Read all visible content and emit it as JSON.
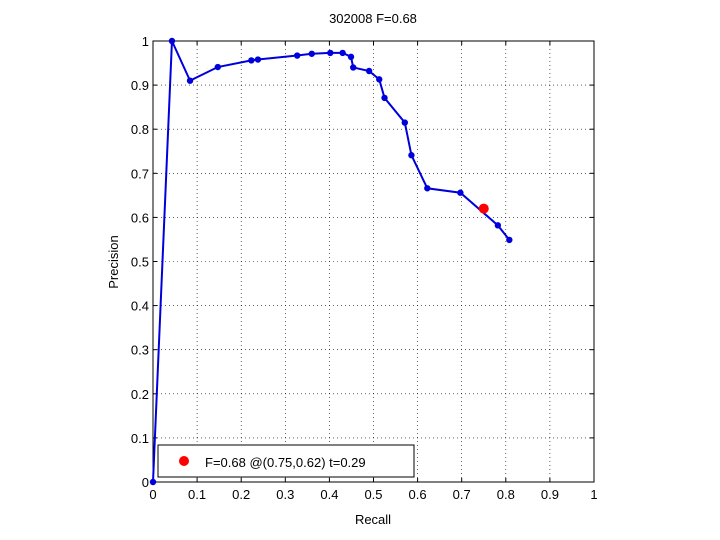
{
  "chart_data": {
    "type": "line",
    "title": "302008 F=0.68",
    "xlabel": "Recall",
    "ylabel": "Precision",
    "xlim": [
      0,
      1
    ],
    "ylim": [
      0,
      1
    ],
    "grid": true,
    "x_ticks": [
      "0",
      "0.1",
      "0.2",
      "0.3",
      "0.4",
      "0.5",
      "0.6",
      "0.7",
      "0.8",
      "0.9",
      "1"
    ],
    "y_ticks": [
      "0",
      "0.1",
      "0.2",
      "0.3",
      "0.4",
      "0.5",
      "0.6",
      "0.7",
      "0.8",
      "0.9",
      "1"
    ],
    "series": [
      {
        "color": "#0000dd",
        "x": [
          0.0,
          0.043,
          0.084,
          0.147,
          0.223,
          0.238,
          0.327,
          0.36,
          0.402,
          0.43,
          0.449,
          0.454,
          0.49,
          0.513,
          0.525,
          0.571,
          0.586,
          0.622,
          0.697,
          0.782,
          0.808
        ],
        "y": [
          0.0,
          1.0,
          0.91,
          0.941,
          0.956,
          0.958,
          0.967,
          0.971,
          0.973,
          0.973,
          0.964,
          0.94,
          0.932,
          0.913,
          0.871,
          0.815,
          0.741,
          0.666,
          0.656,
          0.582,
          0.549
        ]
      }
    ],
    "highlight": {
      "x": 0.75,
      "y": 0.62,
      "color": "#ff0000"
    },
    "legend": {
      "position": "bottom-left",
      "label": "F=0.68 @(0.75,0.62) t=0.29"
    }
  }
}
